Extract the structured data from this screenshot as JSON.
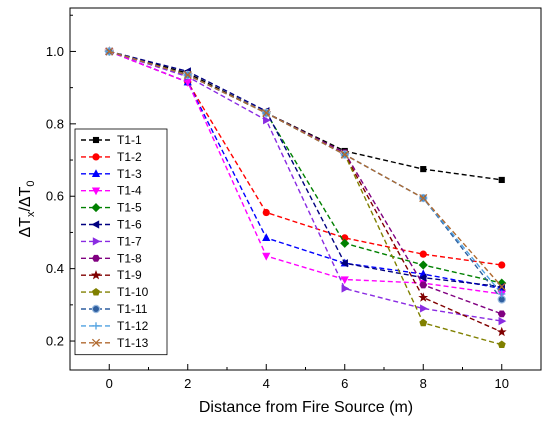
{
  "chart_data": {
    "type": "line",
    "xlabel": "Distance from Fire Source (m)",
    "ylabel_parts": {
      "delta1": "ΔT",
      "sub1": "x",
      "slash": "/",
      "delta2": "ΔT",
      "sub2": "0"
    },
    "xlim": [
      -1,
      11
    ],
    "ylim": [
      0.12,
      1.12
    ],
    "xticks": [
      0,
      2,
      4,
      6,
      8,
      10
    ],
    "xtick_labels": [
      "0",
      "2",
      "4",
      "6",
      "8",
      "10"
    ],
    "yticks": [
      0.2,
      0.4,
      0.6,
      0.8,
      1.0
    ],
    "ytick_labels": [
      "0.2",
      "0.4",
      "0.6",
      "0.8",
      "1.0"
    ],
    "grid": false,
    "legend_position": "left",
    "x": [
      0,
      2,
      4,
      6,
      8,
      10
    ],
    "series": [
      {
        "name": "T1-1",
        "color": "#000000",
        "marker": "square",
        "values": [
          1.0,
          0.94,
          0.83,
          0.725,
          0.675,
          0.645
        ]
      },
      {
        "name": "T1-2",
        "color": "#ff0000",
        "marker": "circle",
        "values": [
          1.0,
          0.915,
          0.555,
          0.485,
          0.44,
          0.41
        ]
      },
      {
        "name": "T1-3",
        "color": "#0000ff",
        "marker": "triangle-up",
        "values": [
          1.0,
          0.915,
          0.485,
          0.415,
          0.385,
          0.345
        ]
      },
      {
        "name": "T1-4",
        "color": "#ff00ff",
        "marker": "triangle-down",
        "values": [
          1.0,
          0.915,
          0.435,
          0.37,
          0.36,
          0.33
        ]
      },
      {
        "name": "T1-5",
        "color": "#008000",
        "marker": "diamond",
        "values": [
          1.0,
          0.935,
          0.83,
          0.47,
          0.41,
          0.36
        ]
      },
      {
        "name": "T1-6",
        "color": "#000080",
        "marker": "triangle-left",
        "values": [
          1.0,
          0.945,
          0.835,
          0.415,
          0.375,
          0.35
        ]
      },
      {
        "name": "T1-7",
        "color": "#8a2be2",
        "marker": "triangle-right",
        "values": [
          1.0,
          0.93,
          0.81,
          0.345,
          0.29,
          0.255
        ]
      },
      {
        "name": "T1-8",
        "color": "#800080",
        "marker": "hexagon",
        "values": [
          1.0,
          0.935,
          0.83,
          0.72,
          0.355,
          0.275
        ]
      },
      {
        "name": "T1-9",
        "color": "#800000",
        "marker": "star",
        "values": [
          1.0,
          0.935,
          0.83,
          0.715,
          0.32,
          0.225
        ]
      },
      {
        "name": "T1-10",
        "color": "#808000",
        "marker": "pentagon",
        "values": [
          1.0,
          0.935,
          0.83,
          0.715,
          0.25,
          0.19
        ]
      },
      {
        "name": "T1-11",
        "color": "#2f5f9f",
        "marker": "circle-filled",
        "values": [
          1.0,
          0.935,
          0.83,
          0.715,
          0.595,
          0.315
        ]
      },
      {
        "name": "T1-12",
        "color": "#4fa0e0",
        "marker": "plus",
        "values": [
          1.0,
          0.935,
          0.83,
          0.715,
          0.595,
          0.33
        ]
      },
      {
        "name": "T1-13",
        "color": "#b06a30",
        "marker": "x",
        "values": [
          1.0,
          0.935,
          0.83,
          0.715,
          0.595,
          0.35
        ]
      }
    ]
  }
}
